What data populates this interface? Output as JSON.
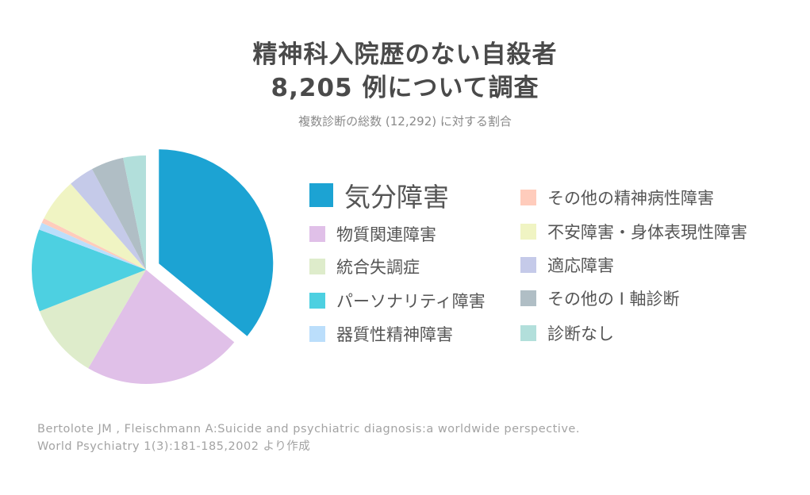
{
  "title_line1": "精神科入院歴のない自殺者",
  "title_line2": "8,205 例について調査",
  "subtitle": "複数診断の総数 (12,292) に対する割合",
  "source_line1": "Bertolote JM , Fleischmann A:Suicide and psychiatric diagnosis:a worldwide perspective.",
  "source_line2": "World Psychiatry 1(3):181-185,2002 より作成",
  "chart_data": {
    "type": "pie",
    "title": "精神科入院歴のない自殺者 8,205 例について調査",
    "subtitle": "複数診断の総数 (12,292) に対する割合",
    "slices": [
      {
        "label": "気分障害",
        "value": 35.8,
        "color": "#1ca3d3",
        "exploded": true
      },
      {
        "label": "物質関連障害",
        "value": 22.4,
        "color": "#e0c0e8"
      },
      {
        "label": "統合失調症",
        "value": 10.6,
        "color": "#deeccb"
      },
      {
        "label": "パーソナリティ障害",
        "value": 11.6,
        "color": "#4dd0e1"
      },
      {
        "label": "器質性精神障害",
        "value": 1.0,
        "color": "#bbdefb"
      },
      {
        "label": "その他の精神病性障害",
        "value": 0.7,
        "color": "#ffccbc"
      },
      {
        "label": "不安障害・身体表現性障害",
        "value": 6.1,
        "color": "#f0f4c3"
      },
      {
        "label": "適応障害",
        "value": 3.6,
        "color": "#c5cae9"
      },
      {
        "label": "その他の I 軸診断",
        "value": 4.6,
        "color": "#b0bec5"
      },
      {
        "label": "診断なし",
        "value": 3.2,
        "color": "#b2dfdb"
      }
    ],
    "legend_placement": "right"
  }
}
